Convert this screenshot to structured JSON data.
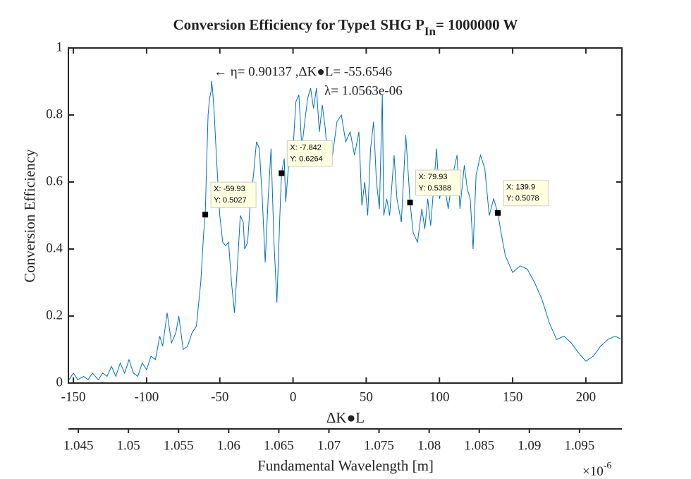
{
  "chart_data": {
    "type": "line",
    "title": "Conversion Efficiency for Type1 SHG P",
    "title_sub": "In",
    "title_end": "= 1000000 W",
    "xlabel": "ΔK●L",
    "ylabel": "Conversion Efficiency",
    "x2label": "Fundamental Wavelength [m]",
    "x2_multiplier": "×10",
    "x2_exponent": "-6",
    "annotation": [
      "← η= 0.90137 ,ΔK●L= -55.6546",
      "λ= 1.0563e-06"
    ],
    "xlim": [
      -153.4,
      224.6
    ],
    "xticks": [
      -150,
      -100,
      -50,
      0,
      50,
      100,
      150,
      200
    ],
    "ylim": [
      0,
      1
    ],
    "yticks": [
      0,
      0.2,
      0.4,
      0.6,
      0.8,
      1
    ],
    "x2lim": [
      1.04401,
      1.09923
    ],
    "x2ticks": [
      1.045,
      1.05,
      1.055,
      1.06,
      1.065,
      1.07,
      1.075,
      1.08,
      1.085,
      1.09,
      1.095
    ],
    "series": [
      {
        "color": "#0072bd",
        "x": [
          -153,
          -150,
          -147,
          -143,
          -140,
          -137,
          -133,
          -130,
          -127,
          -124,
          -121,
          -118,
          -115,
          -112,
          -109,
          -106,
          -103,
          -100,
          -97,
          -94,
          -91,
          -89,
          -86,
          -83,
          -80,
          -78,
          -75,
          -72,
          -69,
          -66,
          -63,
          -61,
          -59.93,
          -59,
          -58,
          -57,
          -56,
          -55.65,
          -55,
          -54,
          -52,
          -50,
          -48,
          -46,
          -44,
          -42,
          -40,
          -38,
          -36,
          -34,
          -33,
          -31,
          -29,
          -27,
          -25,
          -23,
          -21,
          -19,
          -17,
          -15,
          -13,
          -11,
          -9,
          -7.842,
          -6,
          -5,
          -3,
          0,
          2,
          4,
          6,
          8,
          10,
          12,
          14,
          16,
          18,
          20,
          22,
          24,
          27,
          30,
          33,
          36,
          39,
          42,
          45,
          47,
          49,
          51,
          53,
          55,
          57,
          59,
          61,
          62,
          64,
          66,
          69,
          71,
          74,
          77,
          79.93,
          82,
          85,
          88,
          90,
          92,
          94,
          96,
          98,
          100,
          103,
          106,
          109,
          112,
          114,
          117,
          119,
          121,
          123,
          125,
          128,
          131,
          134,
          137,
          139.9,
          142,
          145,
          150,
          155,
          160,
          165,
          170,
          175,
          180,
          185,
          190,
          195,
          200,
          205,
          210,
          215,
          220,
          224.6
        ],
        "values": [
          0.01,
          0.03,
          0.01,
          0.02,
          0.01,
          0.03,
          0.01,
          0.03,
          0.02,
          0.05,
          0.02,
          0.06,
          0.03,
          0.07,
          0.03,
          0.02,
          0.06,
          0.04,
          0.08,
          0.07,
          0.14,
          0.11,
          0.21,
          0.12,
          0.15,
          0.2,
          0.1,
          0.11,
          0.15,
          0.17,
          0.3,
          0.45,
          0.5027,
          0.65,
          0.8,
          0.85,
          0.87,
          0.90137,
          0.88,
          0.82,
          0.65,
          0.5,
          0.42,
          0.41,
          0.42,
          0.3,
          0.21,
          0.35,
          0.5,
          0.48,
          0.4,
          0.42,
          0.55,
          0.62,
          0.72,
          0.7,
          0.55,
          0.36,
          0.55,
          0.7,
          0.42,
          0.24,
          0.5,
          0.6264,
          0.67,
          0.54,
          0.65,
          0.7,
          0.84,
          0.86,
          0.7,
          0.78,
          0.85,
          0.88,
          0.82,
          0.88,
          0.75,
          0.83,
          0.76,
          0.65,
          0.68,
          0.78,
          0.8,
          0.72,
          0.75,
          0.68,
          0.75,
          0.53,
          0.6,
          0.5,
          0.7,
          0.78,
          0.6,
          0.52,
          0.86,
          0.5,
          0.55,
          0.5,
          0.68,
          0.55,
          0.48,
          0.74,
          0.5388,
          0.45,
          0.42,
          0.52,
          0.46,
          0.55,
          0.47,
          0.58,
          0.7,
          0.55,
          0.6,
          0.52,
          0.62,
          0.68,
          0.52,
          0.65,
          0.58,
          0.55,
          0.4,
          0.62,
          0.68,
          0.64,
          0.5,
          0.55,
          0.5078,
          0.45,
          0.38,
          0.33,
          0.35,
          0.34,
          0.3,
          0.25,
          0.18,
          0.13,
          0.14,
          0.12,
          0.09,
          0.065,
          0.08,
          0.11,
          0.13,
          0.14,
          0.13
        ]
      }
    ],
    "datatips": [
      {
        "x": -59.93,
        "y": 0.5027,
        "x_label": "X: -59.93",
        "y_label": "Y: 0.5027"
      },
      {
        "x": -7.842,
        "y": 0.6264,
        "x_label": "X: -7.842",
        "y_label": "Y: 0.6264"
      },
      {
        "x": 79.93,
        "y": 0.5388,
        "x_label": "X: 79.93",
        "y_label": "Y: 0.5388"
      },
      {
        "x": 139.9,
        "y": 0.5078,
        "x_label": "X: 139.9",
        "y_label": "Y: 0.5078"
      }
    ]
  }
}
